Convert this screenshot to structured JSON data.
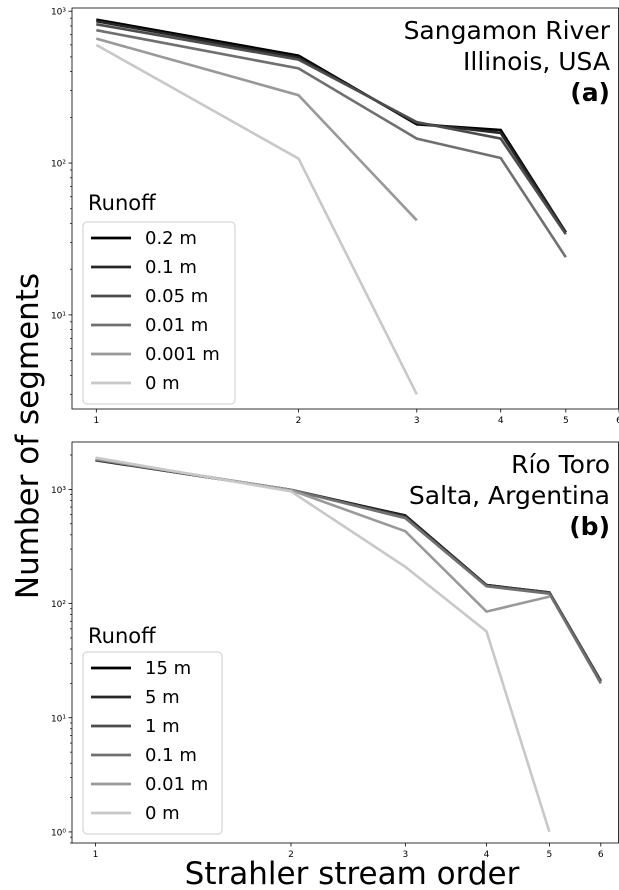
{
  "ylabel": "Number of segments",
  "xlabel": "Strahler stream order",
  "chart_data": [
    {
      "type": "line",
      "log_x": true,
      "log_y": true,
      "xlim": [
        0.92,
        6
      ],
      "ylim": [
        2.4,
        1050
      ],
      "x_ticks": [
        1,
        2,
        3,
        4,
        5,
        6
      ],
      "y_ticks": [
        {
          "value": 10,
          "label": "10¹"
        },
        {
          "value": 100,
          "label": "10²"
        },
        {
          "value": 1000,
          "label": "10³"
        }
      ],
      "annotation": [
        "Sangamon River",
        "Illinois, USA",
        "(a)"
      ],
      "legend_title": "Runoff",
      "legend_position": "lower-left",
      "series": [
        {
          "name": "0.2 m",
          "color": "#000000",
          "x": [
            1,
            2,
            3,
            4,
            5
          ],
          "y": [
            880,
            510,
            180,
            165,
            35
          ]
        },
        {
          "name": "0.1 m",
          "color": "#262626",
          "x": [
            1,
            2,
            3,
            4,
            5
          ],
          "y": [
            860,
            495,
            183,
            158,
            35
          ]
        },
        {
          "name": "0.05 m",
          "color": "#4d4d4d",
          "x": [
            1,
            2,
            3,
            4,
            5
          ],
          "y": [
            820,
            480,
            186,
            145,
            34
          ]
        },
        {
          "name": "0.01 m",
          "color": "#707070",
          "x": [
            1,
            2,
            3,
            4,
            5
          ],
          "y": [
            750,
            420,
            145,
            108,
            24
          ]
        },
        {
          "name": "0.001 m",
          "color": "#999999",
          "x": [
            1,
            2,
            3
          ],
          "y": [
            660,
            280,
            42
          ]
        },
        {
          "name": "0 m",
          "color": "#c8c8c8",
          "x": [
            1,
            2,
            3
          ],
          "y": [
            600,
            107,
            3
          ]
        }
      ]
    },
    {
      "type": "line",
      "log_x": true,
      "log_y": true,
      "xlim": [
        0.92,
        6.4
      ],
      "ylim": [
        0.8,
        2600
      ],
      "x_ticks": [
        1,
        2,
        3,
        4,
        5,
        6
      ],
      "y_ticks": [
        {
          "value": 1,
          "label": "10⁰"
        },
        {
          "value": 10,
          "label": "10¹"
        },
        {
          "value": 100,
          "label": "10²"
        },
        {
          "value": 1000,
          "label": "10³"
        }
      ],
      "annotation": [
        "Río Toro",
        "Salta, Argentina",
        "(b)"
      ],
      "legend_title": "Runoff",
      "legend_position": "lower-left",
      "series": [
        {
          "name": "15 m",
          "color": "#000000",
          "x": [
            1,
            2,
            3,
            4,
            5,
            6
          ],
          "y": [
            1800,
            990,
            590,
            145,
            125,
            21
          ]
        },
        {
          "name": "5 m",
          "color": "#262626",
          "x": [
            1,
            2,
            3,
            4,
            5,
            6
          ],
          "y": [
            1810,
            990,
            585,
            145,
            125,
            21
          ]
        },
        {
          "name": "1 m",
          "color": "#4d4d4d",
          "x": [
            1,
            2,
            3,
            4,
            5,
            6
          ],
          "y": [
            1820,
            990,
            570,
            143,
            124,
            21
          ]
        },
        {
          "name": "0.1 m",
          "color": "#707070",
          "x": [
            1,
            2,
            3,
            4,
            5,
            6
          ],
          "y": [
            1830,
            990,
            560,
            142,
            122,
            20
          ]
        },
        {
          "name": "0.01 m",
          "color": "#999999",
          "x": [
            1,
            2,
            3,
            4,
            5
          ],
          "y": [
            1850,
            985,
            430,
            85,
            115
          ]
        },
        {
          "name": "0 m",
          "color": "#c8c8c8",
          "x": [
            1,
            2,
            3,
            4,
            5
          ],
          "y": [
            1900,
            960,
            210,
            57,
            1
          ]
        }
      ]
    }
  ]
}
